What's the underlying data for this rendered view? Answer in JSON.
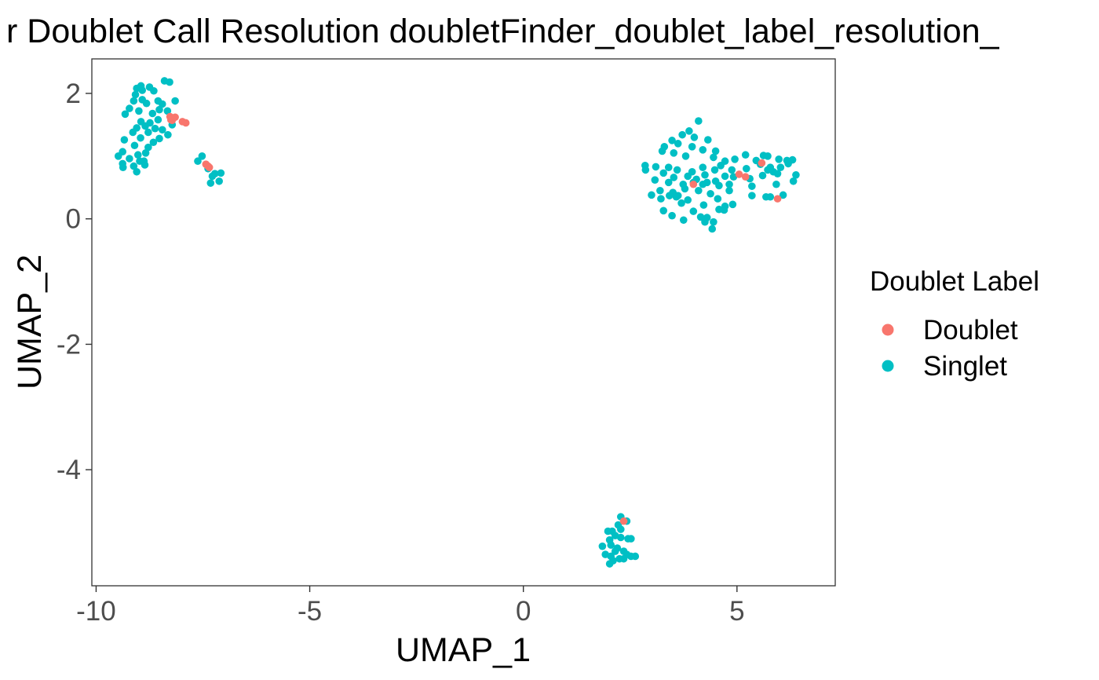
{
  "chart_data": {
    "type": "scatter",
    "title": "r Doublet Call Resolution doubletFinder_doublet_label_resolution_",
    "xlabel": "UMAP_1",
    "ylabel": "UMAP_2",
    "xlim": [
      -10.1,
      7.3
    ],
    "ylim": [
      -5.85,
      2.55
    ],
    "x_ticks": [
      -10,
      -5,
      0,
      5
    ],
    "x_tick_labels": [
      "-10",
      "-5",
      "0",
      "5"
    ],
    "y_ticks": [
      -4,
      -2,
      0,
      2
    ],
    "y_tick_labels": [
      "-4",
      "-2",
      "0",
      "2"
    ],
    "grid": false,
    "legend": {
      "title": "Doublet Label",
      "placement": "right",
      "entries": [
        "Doublet",
        "Singlet"
      ]
    },
    "colors": {
      "Doublet": "#F8766D",
      "Singlet": "#00BFC4"
    },
    "series": [
      {
        "name": "Singlet",
        "points": [
          [
            -9.05,
            2.08
          ],
          [
            -8.95,
            2.12
          ],
          [
            -8.92,
            2.05
          ],
          [
            -9.08,
            1.98
          ],
          [
            -8.75,
            2.1
          ],
          [
            -8.4,
            2.2
          ],
          [
            -8.28,
            2.18
          ],
          [
            -8.65,
            2.04
          ],
          [
            -9.12,
            1.88
          ],
          [
            -8.92,
            1.9
          ],
          [
            -8.82,
            1.84
          ],
          [
            -8.55,
            1.88
          ],
          [
            -8.45,
            1.83
          ],
          [
            -8.15,
            1.88
          ],
          [
            -9.22,
            1.76
          ],
          [
            -9.0,
            1.72
          ],
          [
            -8.68,
            1.68
          ],
          [
            -8.52,
            1.74
          ],
          [
            -9.32,
            1.67
          ],
          [
            -8.33,
            1.72
          ],
          [
            -8.95,
            1.55
          ],
          [
            -8.74,
            1.53
          ],
          [
            -8.55,
            1.58
          ],
          [
            -9.05,
            1.45
          ],
          [
            -8.85,
            1.48
          ],
          [
            -8.62,
            1.44
          ],
          [
            -8.22,
            1.5
          ],
          [
            -9.14,
            1.38
          ],
          [
            -8.78,
            1.38
          ],
          [
            -8.45,
            1.42
          ],
          [
            -8.32,
            1.34
          ],
          [
            -8.96,
            1.29
          ],
          [
            -8.52,
            1.28
          ],
          [
            -8.66,
            1.22
          ],
          [
            -9.34,
            1.26
          ],
          [
            -9.1,
            1.17
          ],
          [
            -8.78,
            1.14
          ],
          [
            -9.38,
            1.07
          ],
          [
            -9.02,
            1.02
          ],
          [
            -8.84,
            1.05
          ],
          [
            -9.48,
            1.0
          ],
          [
            -9.22,
            0.96
          ],
          [
            -8.98,
            0.92
          ],
          [
            -8.88,
            0.92
          ],
          [
            -9.38,
            0.88
          ],
          [
            -9.12,
            0.84
          ],
          [
            -8.86,
            0.86
          ],
          [
            -9.37,
            0.82
          ],
          [
            -9.05,
            0.75
          ],
          [
            -7.62,
            0.92
          ],
          [
            -7.52,
            1.0
          ],
          [
            -7.38,
            0.8
          ],
          [
            -7.22,
            0.72
          ],
          [
            -7.08,
            0.73
          ],
          [
            -7.28,
            0.68
          ],
          [
            -7.32,
            0.57
          ],
          [
            -7.12,
            0.6
          ],
          [
            4.1,
            1.56
          ],
          [
            3.88,
            1.4
          ],
          [
            3.72,
            1.34
          ],
          [
            4.0,
            1.3
          ],
          [
            4.32,
            1.26
          ],
          [
            3.48,
            1.25
          ],
          [
            3.3,
            1.15
          ],
          [
            3.62,
            1.2
          ],
          [
            3.95,
            1.15
          ],
          [
            4.2,
            1.1
          ],
          [
            4.5,
            1.08
          ],
          [
            3.25,
            1.08
          ],
          [
            3.52,
            1.05
          ],
          [
            3.8,
            1.0
          ],
          [
            4.45,
            0.98
          ],
          [
            4.72,
            0.92
          ],
          [
            4.95,
            0.95
          ],
          [
            5.2,
            1.02
          ],
          [
            5.45,
            0.93
          ],
          [
            5.62,
            1.01
          ],
          [
            5.72,
            1.0
          ],
          [
            5.98,
            0.95
          ],
          [
            6.17,
            0.93
          ],
          [
            6.3,
            0.94
          ],
          [
            6.2,
            0.88
          ],
          [
            2.85,
            0.85
          ],
          [
            3.1,
            0.83
          ],
          [
            3.4,
            0.82
          ],
          [
            3.6,
            0.78
          ],
          [
            3.95,
            0.75
          ],
          [
            4.2,
            0.82
          ],
          [
            4.48,
            0.78
          ],
          [
            4.62,
            0.85
          ],
          [
            4.88,
            0.78
          ],
          [
            5.22,
            0.8
          ],
          [
            5.55,
            0.87
          ],
          [
            5.78,
            0.82
          ],
          [
            5.85,
            0.75
          ],
          [
            6.02,
            0.82
          ],
          [
            6.38,
            0.7
          ],
          [
            6.32,
            0.6
          ],
          [
            2.86,
            0.78
          ],
          [
            3.28,
            0.73
          ],
          [
            3.52,
            0.66
          ],
          [
            3.85,
            0.68
          ],
          [
            4.05,
            0.63
          ],
          [
            4.25,
            0.7
          ],
          [
            4.5,
            0.6
          ],
          [
            4.72,
            0.68
          ],
          [
            4.92,
            0.67
          ],
          [
            5.3,
            0.64
          ],
          [
            5.6,
            0.69
          ],
          [
            5.72,
            0.78
          ],
          [
            5.95,
            0.72
          ],
          [
            3.08,
            0.62
          ],
          [
            3.4,
            0.58
          ],
          [
            3.74,
            0.55
          ],
          [
            3.98,
            0.58
          ],
          [
            4.2,
            0.55
          ],
          [
            4.3,
            0.58
          ],
          [
            4.58,
            0.53
          ],
          [
            4.82,
            0.55
          ],
          [
            5.35,
            0.52
          ],
          [
            5.92,
            0.55
          ],
          [
            3.2,
            0.45
          ],
          [
            3.5,
            0.42
          ],
          [
            3.78,
            0.48
          ],
          [
            4.1,
            0.45
          ],
          [
            4.38,
            0.4
          ],
          [
            4.82,
            0.45
          ],
          [
            6.08,
            0.38
          ],
          [
            3.0,
            0.38
          ],
          [
            3.58,
            0.35
          ],
          [
            3.62,
            0.37
          ],
          [
            3.85,
            0.3
          ],
          [
            4.55,
            0.32
          ],
          [
            5.35,
            0.37
          ],
          [
            5.68,
            0.35
          ],
          [
            5.78,
            0.35
          ],
          [
            3.22,
            0.32
          ],
          [
            3.42,
            0.37
          ],
          [
            3.7,
            0.25
          ],
          [
            4.22,
            0.22
          ],
          [
            4.72,
            0.2
          ],
          [
            4.9,
            0.23
          ],
          [
            3.28,
            0.13
          ],
          [
            3.98,
            0.12
          ],
          [
            4.58,
            0.15
          ],
          [
            4.7,
            0.14
          ],
          [
            3.48,
            0.05
          ],
          [
            3.75,
            -0.02
          ],
          [
            4.15,
            0.03
          ],
          [
            4.3,
            0.02
          ],
          [
            4.25,
            -0.05
          ],
          [
            4.45,
            -0.05
          ],
          [
            4.42,
            -0.16
          ],
          [
            2.28,
            -4.75
          ],
          [
            2.42,
            -4.82
          ],
          [
            2.22,
            -4.88
          ],
          [
            1.98,
            -4.98
          ],
          [
            2.08,
            -4.98
          ],
          [
            2.28,
            -4.95
          ],
          [
            2.15,
            -5.05
          ],
          [
            2.28,
            -5.08
          ],
          [
            2.45,
            -5.1
          ],
          [
            2.52,
            -5.1
          ],
          [
            2.02,
            -5.12
          ],
          [
            1.85,
            -5.22
          ],
          [
            2.05,
            -5.2
          ],
          [
            2.2,
            -5.25
          ],
          [
            2.15,
            -5.3
          ],
          [
            2.35,
            -5.3
          ],
          [
            2.42,
            -5.35
          ],
          [
            2.52,
            -5.38
          ],
          [
            2.62,
            -5.38
          ],
          [
            2.05,
            -5.38
          ],
          [
            2.25,
            -5.42
          ],
          [
            1.92,
            -5.35
          ],
          [
            2.1,
            -5.45
          ],
          [
            2.02,
            -5.5
          ],
          [
            2.35,
            -5.42
          ]
        ]
      },
      {
        "name": "Doublet",
        "points": [
          [
            -8.27,
            1.63
          ],
          [
            -8.2,
            1.6
          ],
          [
            -8.22,
            1.57
          ],
          [
            -8.25,
            1.58
          ],
          [
            -8.15,
            1.62
          ],
          [
            -7.98,
            1.55
          ],
          [
            -7.9,
            1.53
          ],
          [
            -7.43,
            0.87
          ],
          [
            -7.38,
            0.84
          ],
          [
            -7.35,
            0.82
          ],
          [
            3.98,
            0.55
          ],
          [
            5.05,
            0.71
          ],
          [
            5.2,
            0.67
          ],
          [
            5.58,
            0.89
          ],
          [
            5.95,
            0.32
          ],
          [
            2.35,
            -4.82
          ]
        ]
      }
    ]
  }
}
